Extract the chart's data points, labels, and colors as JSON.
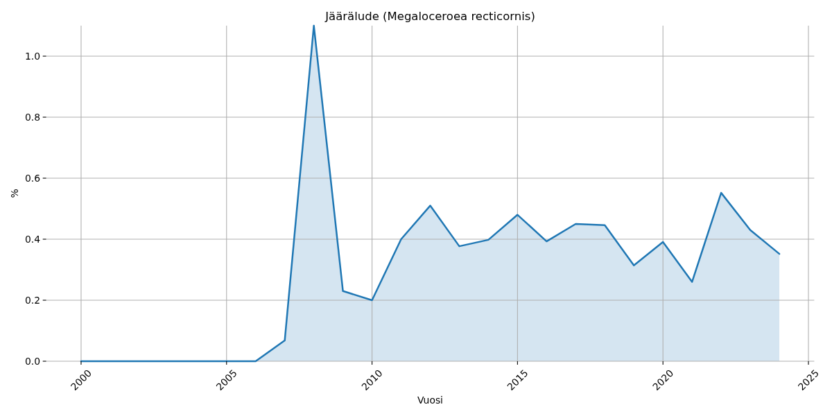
{
  "chart_data": {
    "type": "area",
    "title": "Jäärälude (Megaloceroea recticornis)",
    "xlabel": "Vuosi",
    "ylabel": "%",
    "x": [
      2000,
      2001,
      2002,
      2003,
      2004,
      2005,
      2006,
      2007,
      2008,
      2009,
      2010,
      2011,
      2012,
      2013,
      2014,
      2015,
      2016,
      2017,
      2018,
      2019,
      2020,
      2021,
      2022,
      2023,
      2024
    ],
    "series": [
      {
        "color": "#1f77b4",
        "values": [
          0,
          0,
          0,
          0,
          0,
          0,
          0,
          0.068,
          1.1,
          0.23,
          0.2,
          0.4,
          0.51,
          0.377,
          0.398,
          0.48,
          0.393,
          0.45,
          0.446,
          0.314,
          0.391,
          0.26,
          0.552,
          0.43,
          0.352
        ]
      }
    ],
    "xlim": [
      1998.8,
      2025.2
    ],
    "xticks": [
      2000,
      2005,
      2010,
      2015,
      2020,
      2025
    ],
    "ylim": [
      0,
      1.1
    ],
    "yticks": [
      {
        "value": 0,
        "label": "0.0"
      },
      0.2,
      0.4,
      0.6,
      0.8,
      {
        "value": 1,
        "label": "1.0"
      }
    ],
    "grid": true,
    "line_style": "solid",
    "marker": "none"
  }
}
